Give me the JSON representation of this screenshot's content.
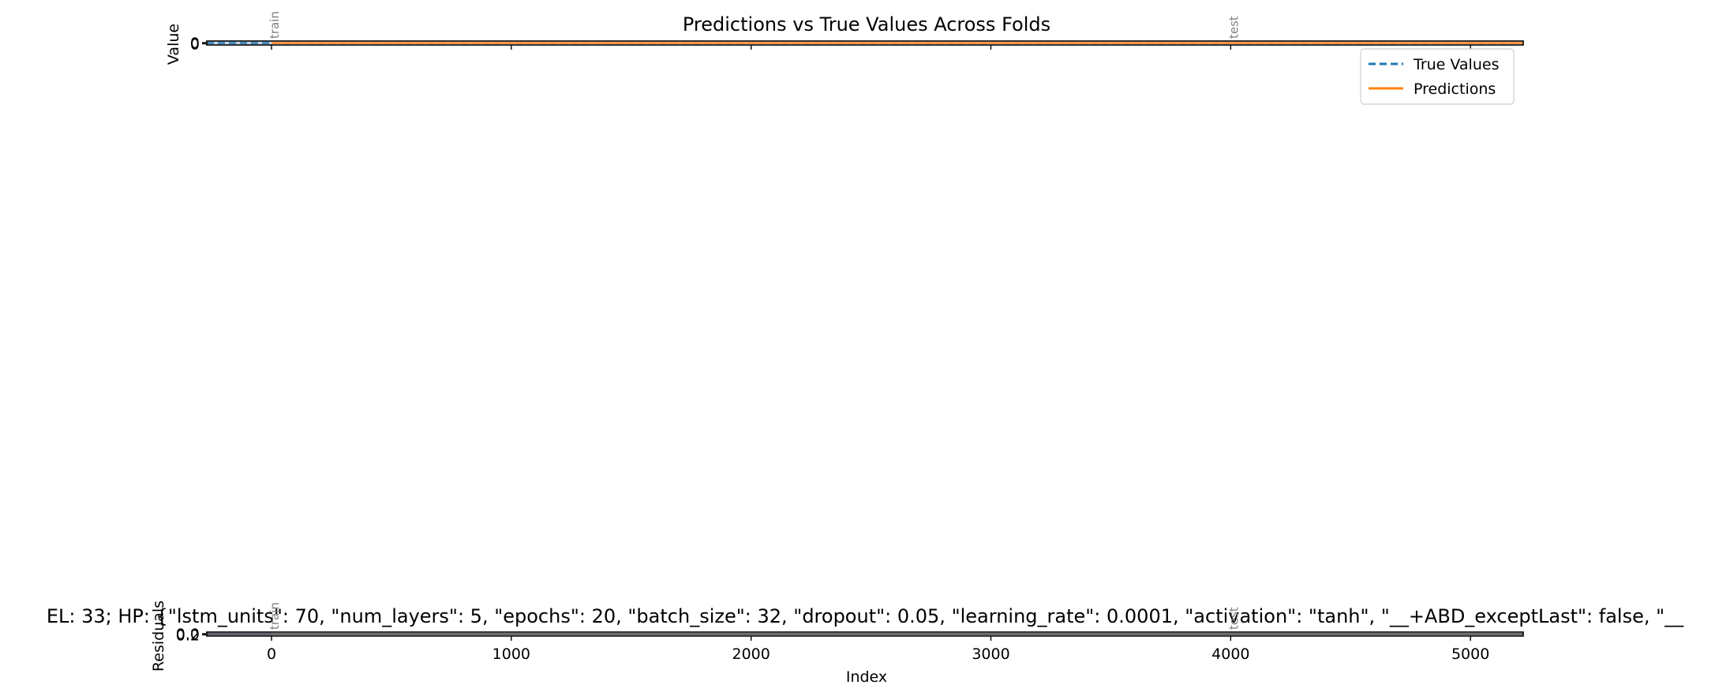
{
  "chart_data": [
    {
      "type": "line",
      "title": "Predictions vs True Values Across Folds",
      "ylabel": "Value",
      "xlabel": "",
      "xlim": [
        -270,
        5220
      ],
      "ylim": [
        -1,
        1
      ],
      "y_ticks": [
        "0",
        "0"
      ],
      "x_ticks": [
        0,
        1000,
        2000,
        3000,
        4000,
        5000
      ],
      "fold_labels": [
        {
          "x": 0,
          "text": "train"
        },
        {
          "x": 4000,
          "text": "test"
        }
      ],
      "series": [
        {
          "name": "True Values",
          "style": "dashed",
          "color": "#1f77b4",
          "x": [
            -270,
            5220
          ],
          "y": [
            0,
            0
          ]
        },
        {
          "name": "Predictions",
          "style": "solid",
          "color": "#ff7f0e",
          "x": [
            0,
            5220
          ],
          "y": [
            0,
            0
          ]
        }
      ],
      "legend": {
        "position": "upper-right",
        "entries": [
          "True Values",
          "Predictions"
        ]
      },
      "grid": false
    },
    {
      "type": "line",
      "title": "EL: 33; HP: {\"lstm_units\": 70, \"num_layers\": 5, \"epochs\": 20, \"batch_size\": 32, \"dropout\": 0.05, \"learning_rate\": 0.0001, \"activation\": \"tanh\", \"__+ABD_exceptLast\": false, \"__",
      "ylabel": "Residuals",
      "xlabel": "Index",
      "xlim": [
        -270,
        5220
      ],
      "ylim": [
        -1,
        1
      ],
      "y_ticks": [
        "0.0",
        "0.2"
      ],
      "x_ticks": [
        0,
        1000,
        2000,
        3000,
        4000,
        5000
      ],
      "fold_labels": [
        {
          "x": 0,
          "text": "train"
        },
        {
          "x": 4000,
          "text": "test"
        }
      ],
      "series": [
        {
          "name": "",
          "style": "solid",
          "color": "#444444",
          "x": [
            -270,
            5220
          ],
          "y": [
            0,
            0
          ]
        }
      ],
      "reference_line": {
        "y": 0,
        "color": "#d62728",
        "style": "dashed"
      },
      "grid": false
    }
  ],
  "colors": {
    "true_values": "#1f77b4",
    "predictions": "#ff7f0e",
    "residual_line": "#444444",
    "zero_line": "#d62728",
    "train_band": "#b0c4de",
    "fold_label": "#808080"
  }
}
